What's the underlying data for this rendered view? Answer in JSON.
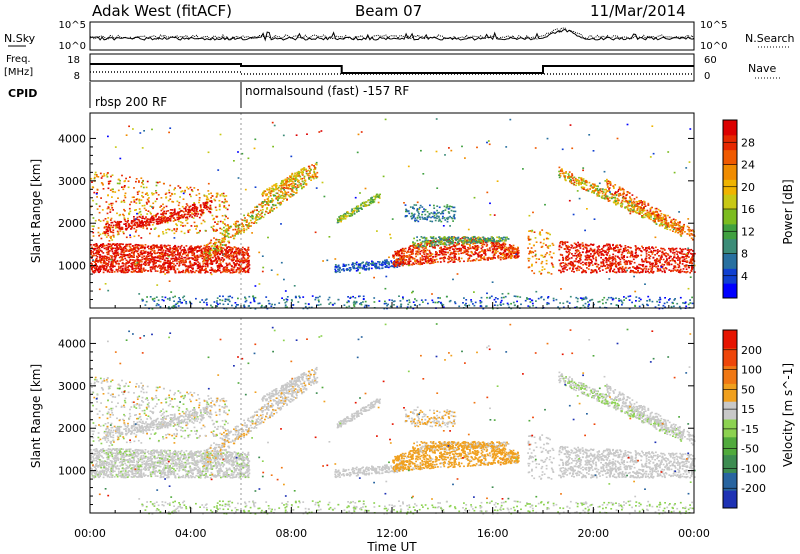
{
  "header": {
    "station": "Adak West (fitACF)",
    "beam": "Beam 07",
    "date": "11/Mar/2014"
  },
  "noise_panel": {
    "left_label": "N.Sky",
    "right_label": "N.Search",
    "left_ticks": [
      "10^5",
      "10^0"
    ],
    "right_ticks": [
      "10^5",
      "10^0"
    ]
  },
  "freq_panel": {
    "left_label_1": "Freq.",
    "left_label_2": "[MHz]",
    "right_label": "Nave",
    "left_ticks": [
      "18",
      "8"
    ],
    "right_ticks": [
      "60",
      "0"
    ],
    "freq_steps": [
      {
        "from_h": 0,
        "to_h": 6,
        "level": "high"
      },
      {
        "from_h": 6,
        "to_h": 10,
        "level": "mid"
      },
      {
        "from_h": 10,
        "to_h": 18,
        "level": "low"
      },
      {
        "from_h": 18,
        "to_h": 24,
        "level": "mid"
      }
    ]
  },
  "cpid": {
    "label": "CPID",
    "segments": [
      {
        "label": "rbsp 200 RF",
        "start_h": 0
      },
      {
        "label": "normalsound (fast) -157 RF",
        "start_h": 6
      }
    ]
  },
  "chart_data": [
    {
      "type": "heatmap",
      "name": "power",
      "ylabel": "Slant Range [km]",
      "yticks": [
        1000,
        2000,
        3000,
        4000
      ],
      "ylim": [
        0,
        4600
      ],
      "xlim": [
        0,
        24
      ],
      "colorbar": {
        "label": "Power [dB]",
        "ticks": [
          "4",
          "8",
          "12",
          "16",
          "20",
          "24",
          "28"
        ],
        "colors": [
          "#0000ff",
          "#1040d0",
          "#2870a0",
          "#3c8c78",
          "#40a040",
          "#7cbc20",
          "#c8c814",
          "#f0b400",
          "#f08c00",
          "#f05a00",
          "#e62800",
          "#dc0000"
        ]
      }
    },
    {
      "type": "heatmap",
      "name": "velocity",
      "ylabel": "Slant Range [km]",
      "yticks": [
        1000,
        2000,
        3000,
        4000
      ],
      "ylim": [
        0,
        4600
      ],
      "xlim": [
        0,
        24
      ],
      "xticks": [
        "00:00",
        "04:00",
        "08:00",
        "12:00",
        "16:00",
        "20:00",
        "00:00"
      ],
      "xlabel": "Time UT",
      "colorbar": {
        "label": "Velocity [m s^-1]",
        "ticks": [
          "200",
          "100",
          "50",
          "15",
          "-15",
          "-50",
          "-100",
          "-200"
        ],
        "colors": [
          "#1e32b4",
          "#2864a0",
          "#3c8c50",
          "#50aa3c",
          "#8cd250",
          "#c8c8c8",
          "#f0a01e",
          "#f07814",
          "#ee460a",
          "#e61400"
        ]
      }
    }
  ]
}
